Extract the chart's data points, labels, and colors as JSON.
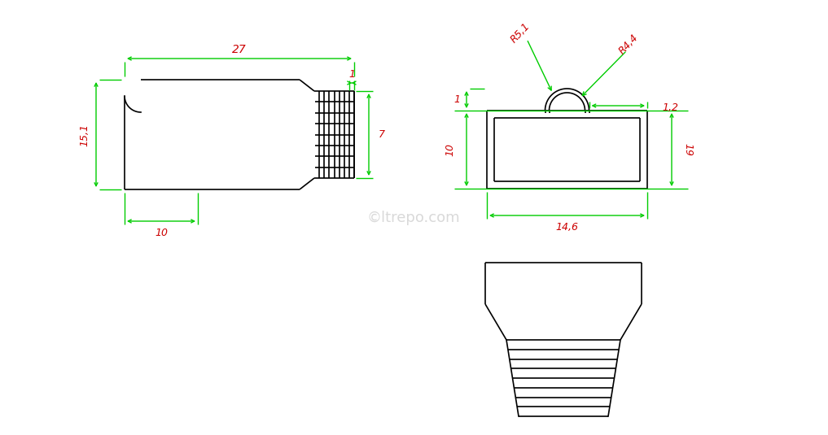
{
  "bg_color": "#ffffff",
  "line_color": "#000000",
  "dim_color": "#00cc00",
  "label_color": "#cc0000",
  "lw": 1.2,
  "dim_lw": 1.0,
  "watermark": "©ltrepo.com",
  "dim_labels": {
    "d27": "27",
    "d15_1": "15,1",
    "d1_rib": "1",
    "d7": "7",
    "d10_left": "10",
    "d1_rj": "1",
    "d10_rj": "10",
    "d14_6": "14,6",
    "d19": "19",
    "dR5_1": "R5,1",
    "dR4_4": "R4,4",
    "d1_2": "1,2"
  }
}
